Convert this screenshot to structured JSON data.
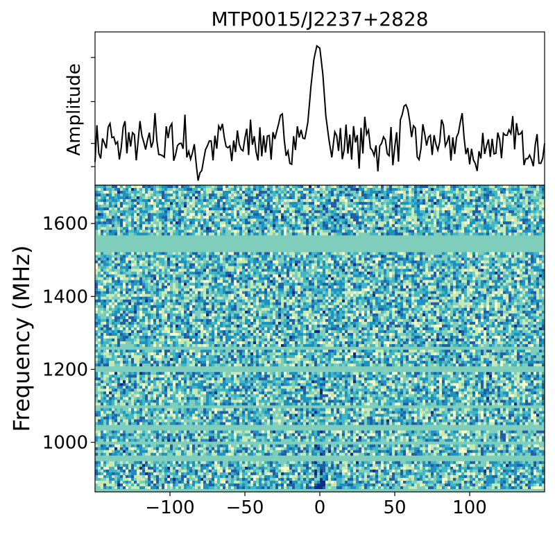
{
  "chart_data": [
    {
      "type": "line",
      "title": "MTP0015/J2237+2828",
      "xlabel": "",
      "ylabel": "Amplitude",
      "xlim": [
        -150,
        150
      ],
      "y_tick_labels_shown": false,
      "series": [
        {
          "description_values": "pulse profile: noise with peak near x=0",
          "x": [
            -150,
            -145,
            -140,
            -135,
            -130,
            -125,
            -120,
            -115,
            -110,
            -105,
            -100,
            -95,
            -90,
            -85,
            -80,
            -75,
            -70,
            -65,
            -60,
            -55,
            -50,
            -45,
            -40,
            -35,
            -30,
            -25,
            -20,
            -15,
            -10,
            -8,
            -6,
            -4,
            -2,
            0,
            2,
            4,
            6,
            8,
            10,
            15,
            20,
            25,
            30,
            35,
            40,
            45,
            50,
            55,
            60,
            65,
            70,
            75,
            80,
            85,
            90,
            95,
            100,
            105,
            110,
            115,
            120,
            125,
            130,
            135,
            140,
            145,
            150
          ],
          "values": [
            0.05,
            -0.1,
            0.2,
            -0.25,
            0.3,
            -0.15,
            0.1,
            -0.3,
            0.35,
            -0.2,
            0.15,
            -0.1,
            0.25,
            -0.35,
            -0.55,
            0.1,
            -0.2,
            0.3,
            -0.45,
            0.2,
            -0.15,
            0.35,
            -0.1,
            0.2,
            -0.25,
            0.4,
            -0.05,
            0.15,
            0.1,
            0.45,
            1.2,
            1.8,
            2.1,
            2.05,
            1.5,
            0.6,
            0.1,
            -0.3,
            0.25,
            -0.1,
            0.2,
            -0.2,
            0.15,
            0.1,
            -0.3,
            0.2,
            -0.25,
            0.3,
            0.55,
            -0.2,
            0.15,
            -0.1,
            0.2,
            -0.3,
            0.1,
            0.25,
            -0.15,
            -0.6,
            0.2,
            -0.1,
            0.15,
            -0.2,
            0.3,
            -0.1,
            0.1,
            -0.2,
            0.0
          ]
        }
      ]
    },
    {
      "type": "heatmap",
      "xlabel": "",
      "ylabel": "Frequency (MHz)",
      "xlim": [
        -150,
        150
      ],
      "ylim": [
        864,
        1705
      ],
      "x_ticks": [
        -100,
        -50,
        0,
        50,
        100
      ],
      "x_tick_labels": [
        "−100",
        "−50",
        "0",
        "50",
        "100"
      ],
      "y_ticks": [
        1000,
        1200,
        1400,
        1600
      ],
      "y_tick_labels": [
        "1000",
        "1200",
        "1400",
        "1600"
      ],
      "colormap": [
        "#f7fcc8",
        "#c7e9b4",
        "#7fcdbb",
        "#41b6c4",
        "#1d91c0",
        "#225ea8",
        "#0c2c84"
      ],
      "signal_x": 0,
      "flagged_bands_mhz": [
        864,
        870,
        955,
        1000,
        1040,
        1095,
        1200,
        1260,
        1530,
        1545,
        1560
      ]
    }
  ]
}
